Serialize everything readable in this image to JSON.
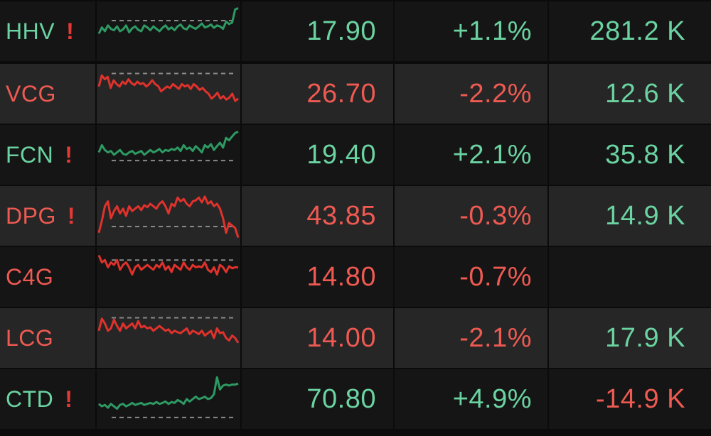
{
  "colors": {
    "up": "#6bd3a1",
    "down": "#ee5a52",
    "alert": "#e53935",
    "line_up": "#2e9a63",
    "line_down": "#e0322c",
    "ref_dash": "#8a8a8a"
  },
  "rows": [
    {
      "symbol": "HHV",
      "alert": "!",
      "price": "17.90",
      "change": "+1.1%",
      "volume": "281.2 K",
      "symbol_dir": "up",
      "price_dir": "up",
      "change_dir": "up",
      "volume_dir": "up",
      "spark_dir": "up",
      "alert_icon": "exclamation-icon",
      "spark": [
        0.55,
        0.42,
        0.5,
        0.38,
        0.45,
        0.48,
        0.4,
        0.5,
        0.46,
        0.38,
        0.52,
        0.44,
        0.4,
        0.47,
        0.5,
        0.38,
        0.42,
        0.48,
        0.4,
        0.45,
        0.5,
        0.43,
        0.38,
        0.46,
        0.42,
        0.48,
        0.4,
        0.36,
        0.44,
        0.46,
        0.38,
        0.42,
        0.45,
        0.4,
        0.34,
        0.42,
        0.4,
        0.36,
        0.43,
        0.38,
        0.4,
        0.45,
        0.3,
        0.35,
        0.32,
        0.05,
        0.02
      ],
      "spark_ref": 0.28
    },
    {
      "symbol": "VCG",
      "alert": "",
      "price": "26.70",
      "change": "-2.2%",
      "volume": "12.6 K",
      "symbol_dir": "down",
      "price_dir": "down",
      "change_dir": "down",
      "volume_dir": "up",
      "spark_dir": "down",
      "alert_icon": "",
      "spark": [
        0.35,
        0.12,
        0.2,
        0.15,
        0.38,
        0.22,
        0.3,
        0.35,
        0.25,
        0.3,
        0.2,
        0.28,
        0.32,
        0.25,
        0.3,
        0.28,
        0.35,
        0.3,
        0.22,
        0.3,
        0.34,
        0.45,
        0.4,
        0.35,
        0.38,
        0.3,
        0.35,
        0.4,
        0.3,
        0.35,
        0.32,
        0.4,
        0.3,
        0.35,
        0.42,
        0.38,
        0.45,
        0.5,
        0.6,
        0.55,
        0.48,
        0.6,
        0.55,
        0.62,
        0.58,
        0.5,
        0.65,
        0.6
      ],
      "spark_ref": 0.08
    },
    {
      "symbol": "FCN",
      "alert": "!",
      "price": "19.40",
      "change": "+2.1%",
      "volume": "35.8 K",
      "symbol_dir": "up",
      "price_dir": "up",
      "change_dir": "up",
      "volume_dir": "up",
      "spark_dir": "up",
      "alert_icon": "exclamation-icon",
      "spark": [
        0.45,
        0.3,
        0.4,
        0.45,
        0.42,
        0.5,
        0.45,
        0.4,
        0.48,
        0.5,
        0.45,
        0.42,
        0.48,
        0.45,
        0.42,
        0.5,
        0.45,
        0.4,
        0.45,
        0.42,
        0.38,
        0.45,
        0.4,
        0.42,
        0.38,
        0.4,
        0.35,
        0.42,
        0.3,
        0.38,
        0.35,
        0.42,
        0.32,
        0.38,
        0.45,
        0.3,
        0.35,
        0.28,
        0.4,
        0.32,
        0.25,
        0.35,
        0.15,
        0.2,
        0.12,
        0.05,
        0.02
      ],
      "spark_ref": 0.62
    },
    {
      "symbol": "DPG",
      "alert": "!",
      "price": "43.85",
      "change": "-0.3%",
      "volume": "14.9 K",
      "symbol_dir": "down",
      "price_dir": "down",
      "change_dir": "down",
      "volume_dir": "up",
      "spark_dir": "down",
      "alert_icon": "exclamation-icon",
      "spark": [
        0.85,
        0.6,
        0.3,
        0.2,
        0.55,
        0.4,
        0.3,
        0.45,
        0.35,
        0.5,
        0.3,
        0.4,
        0.35,
        0.3,
        0.38,
        0.28,
        0.32,
        0.25,
        0.3,
        0.35,
        0.25,
        0.2,
        0.3,
        0.45,
        0.25,
        0.3,
        0.12,
        0.2,
        0.15,
        0.25,
        0.3,
        0.2,
        0.18,
        0.12,
        0.22,
        0.1,
        0.25,
        0.2,
        0.3,
        0.25,
        0.35,
        0.55,
        0.85,
        0.65,
        0.7,
        0.75,
        0.95
      ],
      "spark_ref": 0.72
    },
    {
      "symbol": "C4G",
      "alert": "",
      "price": "14.80",
      "change": "-0.7%",
      "volume": "",
      "symbol_dir": "down",
      "price_dir": "down",
      "change_dir": "down",
      "volume_dir": "up",
      "spark_dir": "down",
      "alert_icon": "",
      "spark": [
        0.05,
        0.2,
        0.15,
        0.3,
        0.2,
        0.25,
        0.15,
        0.35,
        0.25,
        0.2,
        0.3,
        0.45,
        0.3,
        0.25,
        0.35,
        0.3,
        0.25,
        0.3,
        0.35,
        0.25,
        0.3,
        0.2,
        0.35,
        0.28,
        0.4,
        0.25,
        0.3,
        0.35,
        0.2,
        0.3,
        0.35,
        0.25,
        0.3,
        0.28,
        0.3,
        0.2,
        0.35,
        0.4,
        0.3,
        0.45,
        0.25,
        0.3,
        0.4,
        0.28,
        0.32,
        0.3,
        0.3
      ],
      "spark_ref": 0.15
    },
    {
      "symbol": "LCG",
      "alert": "",
      "price": "14.00",
      "change": "-2.1%",
      "volume": "17.9 K",
      "symbol_dir": "down",
      "price_dir": "down",
      "change_dir": "down",
      "volume_dir": "up",
      "spark_dir": "down",
      "alert_icon": "",
      "spark": [
        0.35,
        0.1,
        0.2,
        0.35,
        0.3,
        0.12,
        0.25,
        0.35,
        0.2,
        0.3,
        0.25,
        0.2,
        0.3,
        0.15,
        0.28,
        0.25,
        0.3,
        0.28,
        0.35,
        0.3,
        0.25,
        0.3,
        0.35,
        0.32,
        0.4,
        0.35,
        0.38,
        0.4,
        0.35,
        0.3,
        0.42,
        0.35,
        0.38,
        0.42,
        0.35,
        0.45,
        0.4,
        0.35,
        0.5,
        0.3,
        0.4,
        0.38,
        0.5,
        0.55,
        0.45,
        0.5,
        0.6
      ],
      "spark_ref": 0.08
    },
    {
      "symbol": "CTD",
      "alert": "!",
      "price": "70.80",
      "change": "+4.9%",
      "volume": "-14.9 K",
      "symbol_dir": "up",
      "price_dir": "up",
      "change_dir": "up",
      "volume_dir": "down",
      "spark_dir": "up",
      "alert_icon": "exclamation-icon",
      "spark": [
        0.6,
        0.65,
        0.62,
        0.68,
        0.6,
        0.65,
        0.7,
        0.62,
        0.6,
        0.65,
        0.62,
        0.58,
        0.62,
        0.6,
        0.58,
        0.62,
        0.6,
        0.58,
        0.6,
        0.56,
        0.6,
        0.58,
        0.55,
        0.6,
        0.56,
        0.58,
        0.52,
        0.55,
        0.6,
        0.5,
        0.55,
        0.5,
        0.45,
        0.5,
        0.48,
        0.45,
        0.5,
        0.48,
        0.4,
        0.05,
        0.3,
        0.22,
        0.2,
        0.22,
        0.2,
        0.2,
        0.18
      ],
      "spark_ref": 0.88
    }
  ]
}
